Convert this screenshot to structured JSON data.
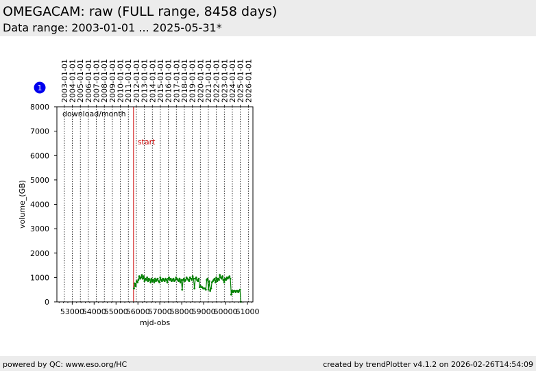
{
  "header": {
    "title": "OMEGACAM: raw (FULL range, 8458 days)",
    "subtitle": "Data range: 2003-01-01 ... 2025-05-31*"
  },
  "footer": {
    "left": "powered by QC: www.eso.org/HC",
    "right": "created by trendPlotter v4.1.2 on 2026-02-26T14:54:09"
  },
  "badge": {
    "label": "1",
    "color": "#0000ee"
  },
  "chart_data": {
    "type": "line",
    "xlabel": "mjd-obs",
    "ylabel": "volume_(GB)",
    "xlim": [
      52300,
      61250
    ],
    "ylim": [
      0,
      8000
    ],
    "grid": true,
    "annotation": "download/month",
    "xticks": [
      53000,
      54000,
      55000,
      56000,
      57000,
      58000,
      59000,
      60000,
      61000
    ],
    "yticks": [
      0,
      1000,
      2000,
      3000,
      4000,
      5000,
      6000,
      7000,
      8000
    ],
    "date_ticks": [
      {
        "label": "2003-01-01",
        "mjd": 52640
      },
      {
        "label": "2004-01-01",
        "mjd": 53005
      },
      {
        "label": "2005-01-01",
        "mjd": 53371
      },
      {
        "label": "2006-01-01",
        "mjd": 53736
      },
      {
        "label": "2007-01-01",
        "mjd": 54101
      },
      {
        "label": "2008-01-01",
        "mjd": 54466
      },
      {
        "label": "2009-01-01",
        "mjd": 54832
      },
      {
        "label": "2010-01-01",
        "mjd": 55197
      },
      {
        "label": "2011-01-01",
        "mjd": 55562
      },
      {
        "label": "2012-01-01",
        "mjd": 55927
      },
      {
        "label": "2013-01-01",
        "mjd": 56293
      },
      {
        "label": "2014-01-01",
        "mjd": 56658
      },
      {
        "label": "2015-01-01",
        "mjd": 57023
      },
      {
        "label": "2016-01-01",
        "mjd": 57388
      },
      {
        "label": "2017-01-01",
        "mjd": 57754
      },
      {
        "label": "2018-01-01",
        "mjd": 58119
      },
      {
        "label": "2019-01-01",
        "mjd": 58484
      },
      {
        "label": "2020-01-01",
        "mjd": 58849
      },
      {
        "label": "2021-01-01",
        "mjd": 59215
      },
      {
        "label": "2022-01-01",
        "mjd": 59580
      },
      {
        "label": "2023-01-01",
        "mjd": 59945
      },
      {
        "label": "2024-01-01",
        "mjd": 60310
      },
      {
        "label": "2025-01-01",
        "mjd": 60676
      },
      {
        "label": "2026-01-01",
        "mjd": 61041
      }
    ],
    "start_marker": {
      "label": "start",
      "x": 55800,
      "color": "#cc0000"
    },
    "series": [
      {
        "color": "#008000",
        "points": [
          [
            55820,
            550
          ],
          [
            55860,
            750
          ],
          [
            55900,
            650
          ],
          [
            55940,
            850
          ],
          [
            55980,
            800
          ],
          [
            56020,
            900
          ],
          [
            56060,
            1050
          ],
          [
            56100,
            950
          ],
          [
            56140,
            1000
          ],
          [
            56180,
            1100
          ],
          [
            56220,
            950
          ],
          [
            56260,
            1050
          ],
          [
            56300,
            850
          ],
          [
            56340,
            950
          ],
          [
            56380,
            900
          ],
          [
            56420,
            1000
          ],
          [
            56460,
            850
          ],
          [
            56500,
            950
          ],
          [
            56540,
            900
          ],
          [
            56580,
            800
          ],
          [
            56620,
            950
          ],
          [
            56660,
            850
          ],
          [
            56700,
            900
          ],
          [
            56740,
            800
          ],
          [
            56780,
            950
          ],
          [
            56820,
            850
          ],
          [
            56860,
            900
          ],
          [
            56900,
            950
          ],
          [
            56940,
            850
          ],
          [
            56980,
            800
          ],
          [
            57020,
            1000
          ],
          [
            57060,
            900
          ],
          [
            57100,
            850
          ],
          [
            57140,
            950
          ],
          [
            57180,
            900
          ],
          [
            57220,
            850
          ],
          [
            57260,
            950
          ],
          [
            57300,
            900
          ],
          [
            57340,
            800
          ],
          [
            57380,
            950
          ],
          [
            57420,
            1000
          ],
          [
            57460,
            900
          ],
          [
            57500,
            950
          ],
          [
            57540,
            850
          ],
          [
            57580,
            900
          ],
          [
            57620,
            950
          ],
          [
            57660,
            850
          ],
          [
            57700,
            900
          ],
          [
            57740,
            1000
          ],
          [
            57780,
            950
          ],
          [
            57820,
            900
          ],
          [
            57860,
            850
          ],
          [
            57900,
            950
          ],
          [
            57940,
            800
          ],
          [
            57980,
            900
          ],
          [
            58020,
            500
          ],
          [
            58060,
            900
          ],
          [
            58100,
            950
          ],
          [
            58140,
            850
          ],
          [
            58180,
            900
          ],
          [
            58220,
            1000
          ],
          [
            58260,
            950
          ],
          [
            58300,
            900
          ],
          [
            58340,
            850
          ],
          [
            58380,
            1000
          ],
          [
            58420,
            950
          ],
          [
            58460,
            900
          ],
          [
            58500,
            1050
          ],
          [
            58540,
            950
          ],
          [
            58580,
            550
          ],
          [
            58620,
            950
          ],
          [
            58660,
            1000
          ],
          [
            58700,
            900
          ],
          [
            58740,
            850
          ],
          [
            58780,
            950
          ],
          [
            58820,
            600
          ],
          [
            58860,
            650
          ],
          [
            58900,
            600
          ],
          [
            58940,
            600
          ],
          [
            58980,
            550
          ],
          [
            59020,
            550
          ],
          [
            59060,
            550
          ],
          [
            59100,
            500
          ],
          [
            59140,
            900
          ],
          [
            59180,
            950
          ],
          [
            59220,
            500
          ],
          [
            59260,
            850
          ],
          [
            59300,
            450
          ],
          [
            59340,
            550
          ],
          [
            59380,
            800
          ],
          [
            59420,
            850
          ],
          [
            59460,
            900
          ],
          [
            59500,
            950
          ],
          [
            59540,
            800
          ],
          [
            59580,
            1000
          ],
          [
            59620,
            850
          ],
          [
            59660,
            950
          ],
          [
            59700,
            900
          ],
          [
            59740,
            1100
          ],
          [
            59780,
            1000
          ],
          [
            59820,
            950
          ],
          [
            59860,
            1050
          ],
          [
            59900,
            900
          ],
          [
            59940,
            800
          ],
          [
            59980,
            950
          ],
          [
            60020,
            900
          ],
          [
            60060,
            1000
          ],
          [
            60100,
            950
          ],
          [
            60140,
            1000
          ],
          [
            60180,
            1050
          ],
          [
            60220,
            950
          ],
          [
            60260,
            300
          ],
          [
            60300,
            450
          ],
          [
            60340,
            400
          ],
          [
            60380,
            450
          ],
          [
            60420,
            450
          ],
          [
            60460,
            400
          ],
          [
            60500,
            450
          ],
          [
            60540,
            450
          ],
          [
            60580,
            400
          ],
          [
            60620,
            450
          ],
          [
            60660,
            500
          ],
          [
            60700,
            0
          ]
        ]
      }
    ]
  }
}
